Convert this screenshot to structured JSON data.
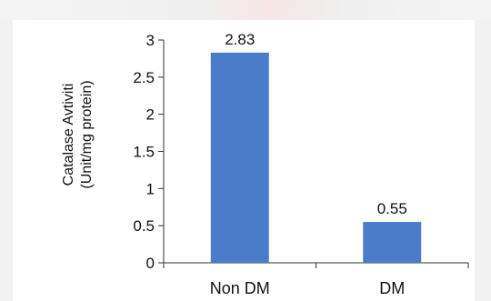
{
  "chart_data": {
    "type": "bar",
    "categories": [
      "Non DM",
      "DM"
    ],
    "values": [
      2.83,
      0.55
    ],
    "data_labels": [
      "2.83",
      "0.55"
    ],
    "ylabel_line1": "Catalase Avtiviti",
    "ylabel_line2": "(Unit/mg protein)",
    "xlabel": "",
    "ylim": [
      0,
      3
    ],
    "yticks": [
      0,
      0.5,
      1,
      1.5,
      2,
      2.5,
      3
    ],
    "ytick_labels": [
      "0",
      "0.5",
      "1",
      "1.5",
      "2",
      "2.5",
      "3"
    ],
    "bar_color": "#4a7cc9",
    "grid": false,
    "legend": "none"
  }
}
